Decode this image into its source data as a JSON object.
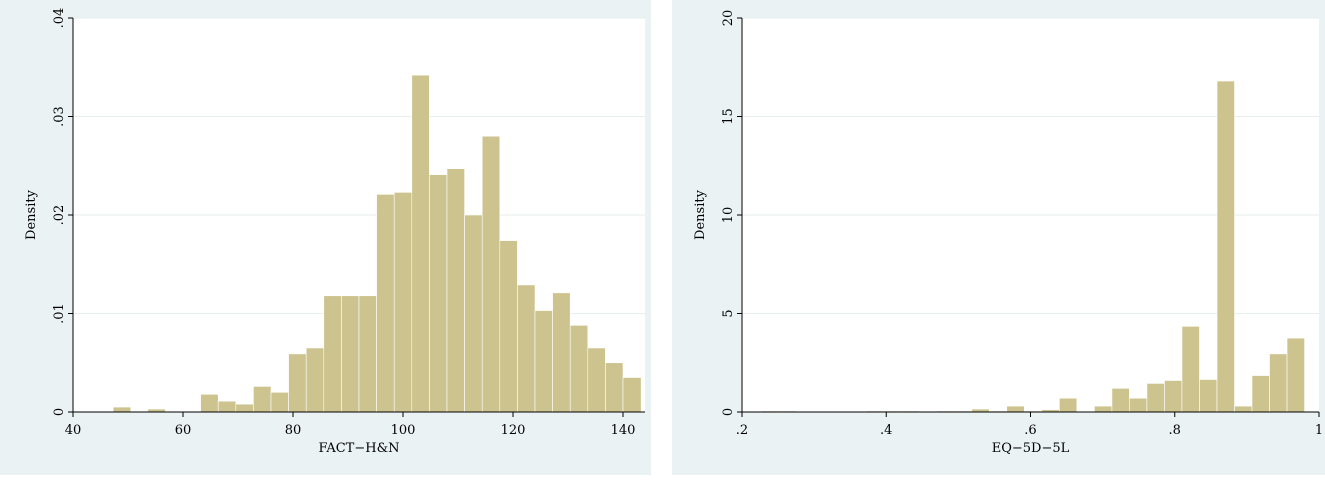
{
  "chart_data": [
    {
      "type": "bar",
      "subtype": "histogram",
      "xlabel": "FACT−H&N",
      "ylabel": "Density",
      "xlim": [
        40,
        144
      ],
      "ylim": [
        0,
        0.04
      ],
      "xticks": [
        40,
        60,
        80,
        100,
        120,
        140
      ],
      "xtick_labels": [
        "40",
        "60",
        "80",
        "100",
        "120",
        "140"
      ],
      "yticks": [
        0,
        0.01,
        0.02,
        0.03,
        0.04
      ],
      "ytick_labels": [
        "0",
        ".01",
        ".02",
        ".03",
        ".04"
      ],
      "grid": true,
      "bar_color": "#cdc38e",
      "background_color": "#eaf2f3",
      "bins": [
        {
          "x0": 47.3,
          "x1": 50.5,
          "value": 0.0005
        },
        {
          "x0": 53.6,
          "x1": 56.8,
          "value": 0.0003
        },
        {
          "x0": 63.2,
          "x1": 66.4,
          "value": 0.0018
        },
        {
          "x0": 66.4,
          "x1": 69.6,
          "value": 0.0011
        },
        {
          "x0": 69.6,
          "x1": 72.8,
          "value": 0.0008
        },
        {
          "x0": 72.8,
          "x1": 76.0,
          "value": 0.0026
        },
        {
          "x0": 76.0,
          "x1": 79.2,
          "value": 0.002
        },
        {
          "x0": 79.2,
          "x1": 82.4,
          "value": 0.0059
        },
        {
          "x0": 82.4,
          "x1": 85.6,
          "value": 0.0065
        },
        {
          "x0": 85.6,
          "x1": 88.8,
          "value": 0.0118
        },
        {
          "x0": 88.8,
          "x1": 92.0,
          "value": 0.0118
        },
        {
          "x0": 92.0,
          "x1": 95.2,
          "value": 0.0118
        },
        {
          "x0": 95.2,
          "x1": 98.4,
          "value": 0.0221
        },
        {
          "x0": 98.4,
          "x1": 101.6,
          "value": 0.0223
        },
        {
          "x0": 101.6,
          "x1": 104.8,
          "value": 0.0342
        },
        {
          "x0": 104.8,
          "x1": 108.0,
          "value": 0.0241
        },
        {
          "x0": 108.0,
          "x1": 111.2,
          "value": 0.0247
        },
        {
          "x0": 111.2,
          "x1": 114.4,
          "value": 0.02
        },
        {
          "x0": 114.4,
          "x1": 117.6,
          "value": 0.028
        },
        {
          "x0": 117.6,
          "x1": 120.8,
          "value": 0.0174
        },
        {
          "x0": 120.8,
          "x1": 124.0,
          "value": 0.0129
        },
        {
          "x0": 124.0,
          "x1": 127.2,
          "value": 0.0103
        },
        {
          "x0": 127.2,
          "x1": 130.4,
          "value": 0.0121
        },
        {
          "x0": 130.4,
          "x1": 133.6,
          "value": 0.0088
        },
        {
          "x0": 133.6,
          "x1": 136.8,
          "value": 0.0065
        },
        {
          "x0": 136.8,
          "x1": 140.0,
          "value": 0.005
        },
        {
          "x0": 140.0,
          "x1": 143.3,
          "value": 0.0035
        }
      ]
    },
    {
      "type": "bar",
      "subtype": "histogram",
      "xlabel": "EQ−5D−5L",
      "ylabel": "Density",
      "xlim": [
        0.2,
        1.0
      ],
      "ylim": [
        0,
        20
      ],
      "xticks": [
        0.2,
        0.4,
        0.6,
        0.8,
        1.0
      ],
      "xtick_labels": [
        ".2",
        ".4",
        ".6",
        ".8",
        "1"
      ],
      "yticks": [
        0,
        5,
        10,
        15,
        20
      ],
      "ytick_labels": [
        "0",
        "5",
        "10",
        "15",
        "20"
      ],
      "grid": true,
      "bar_color": "#cdc38e",
      "background_color": "#eaf2f3",
      "bins": [
        {
          "x0": 0.2271,
          "x1": 0.2514,
          "value": 0.05
        },
        {
          "x0": 0.2514,
          "x1": 0.2757,
          "value": 0.05
        },
        {
          "x0": 0.3729,
          "x1": 0.3971,
          "value": 0.05
        },
        {
          "x0": 0.3971,
          "x1": 0.4214,
          "value": 0.05
        },
        {
          "x0": 0.4214,
          "x1": 0.4457,
          "value": 0.05
        },
        {
          "x0": 0.47,
          "x1": 0.4943,
          "value": 0.05
        },
        {
          "x0": 0.4943,
          "x1": 0.5186,
          "value": 0.05
        },
        {
          "x0": 0.5186,
          "x1": 0.5429,
          "value": 0.15
        },
        {
          "x0": 0.5429,
          "x1": 0.5671,
          "value": 0.05
        },
        {
          "x0": 0.5671,
          "x1": 0.5914,
          "value": 0.3
        },
        {
          "x0": 0.5914,
          "x1": 0.6157,
          "value": 0.05
        },
        {
          "x0": 0.6157,
          "x1": 0.64,
          "value": 0.12
        },
        {
          "x0": 0.64,
          "x1": 0.6643,
          "value": 0.7
        },
        {
          "x0": 0.6886,
          "x1": 0.7129,
          "value": 0.3
        },
        {
          "x0": 0.7129,
          "x1": 0.7371,
          "value": 1.2
        },
        {
          "x0": 0.7371,
          "x1": 0.7614,
          "value": 0.7
        },
        {
          "x0": 0.7614,
          "x1": 0.7857,
          "value": 1.45
        },
        {
          "x0": 0.7857,
          "x1": 0.81,
          "value": 1.6
        },
        {
          "x0": 0.81,
          "x1": 0.8343,
          "value": 4.35
        },
        {
          "x0": 0.8343,
          "x1": 0.8586,
          "value": 1.65
        },
        {
          "x0": 0.8586,
          "x1": 0.8829,
          "value": 16.8
        },
        {
          "x0": 0.8829,
          "x1": 0.9071,
          "value": 0.3
        },
        {
          "x0": 0.9071,
          "x1": 0.9314,
          "value": 1.85
        },
        {
          "x0": 0.9314,
          "x1": 0.9557,
          "value": 2.95
        },
        {
          "x0": 0.9557,
          "x1": 0.98,
          "value": 3.75
        }
      ]
    }
  ]
}
